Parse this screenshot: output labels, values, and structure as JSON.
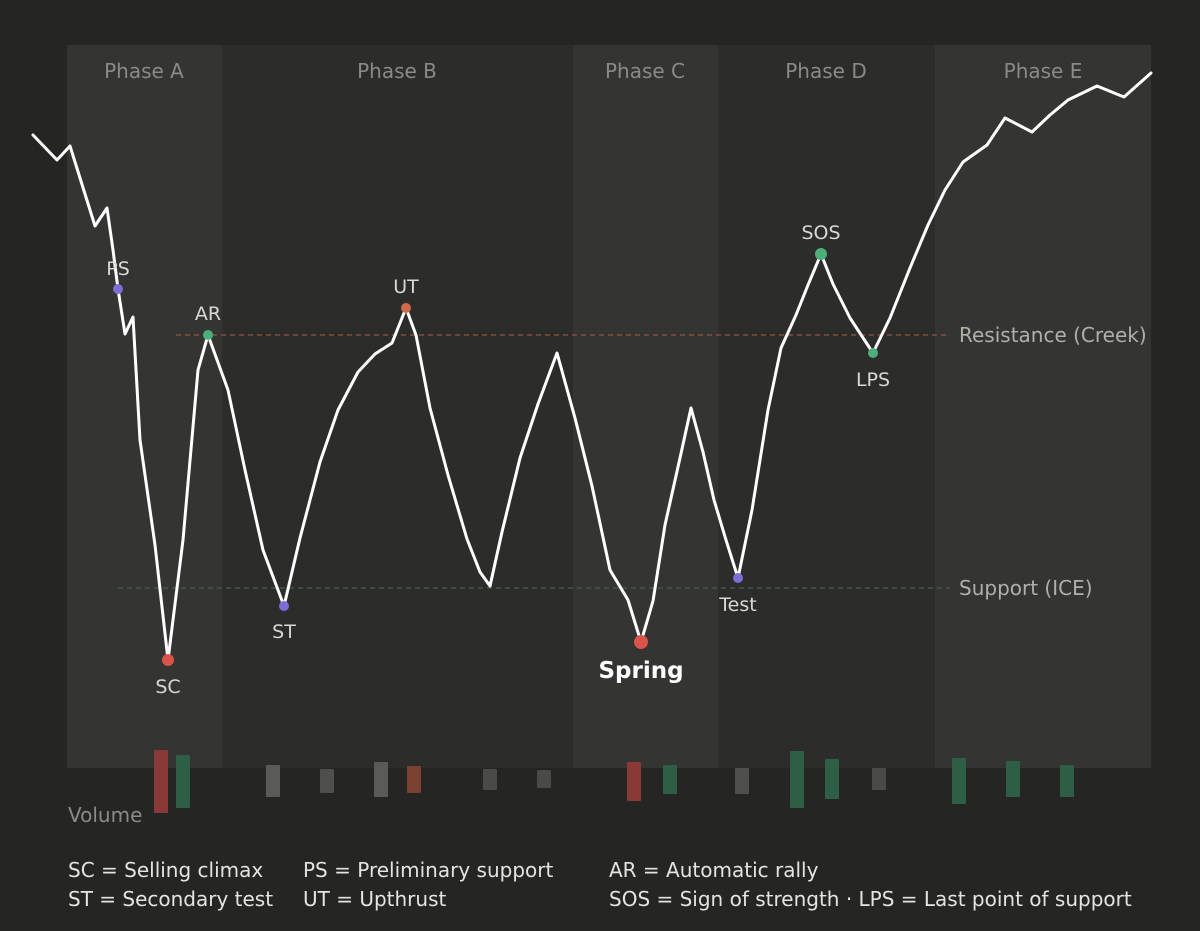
{
  "phases": [
    "Phase A",
    "Phase B",
    "Phase C",
    "Phase D",
    "Phase E"
  ],
  "levels": {
    "resistance": "Resistance (Creek)",
    "support": "Support (ICE)"
  },
  "points": {
    "PS": "PS",
    "SC": "SC",
    "AR": "AR",
    "ST": "ST",
    "UT": "UT",
    "Spring": "Spring",
    "Test": "Test",
    "SOS": "SOS",
    "LPS": "LPS"
  },
  "volume_label": "Volume",
  "legend": [
    [
      "SC = Selling climax",
      "PS = Preliminary support",
      "AR = Automatic rally"
    ],
    [
      "ST = Secondary test",
      "UT = Upthrust",
      "SOS = Sign of strength · LPS = Last point of support"
    ]
  ],
  "colors": {
    "background": "#252523",
    "phase_light": "#333331",
    "phase_dark": "#2b2b29",
    "price_line": "#ffffff",
    "red": "#d9534a",
    "green": "#4caf7a",
    "purple": "#7b6fd6",
    "orange": "#d06a4a",
    "vol_gray": "#5a5a58",
    "vol_red": "#8a3a36",
    "vol_green": "#2e5e45",
    "vol_orange": "#7a4030",
    "resistance_line": "#b5634a",
    "support_line": "#3d6b52"
  }
}
